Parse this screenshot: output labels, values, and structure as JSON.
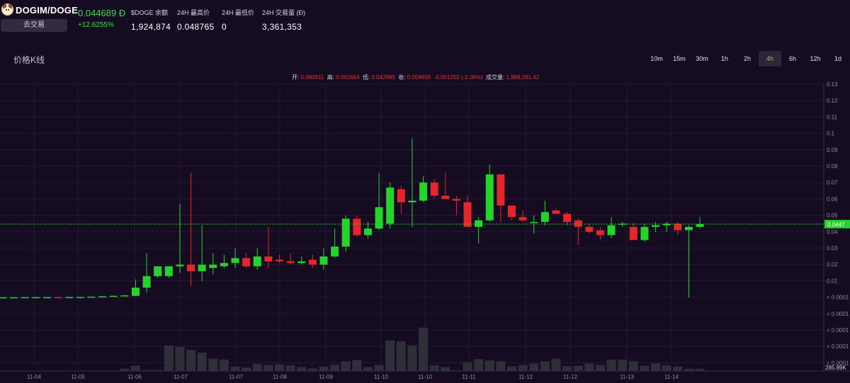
{
  "header": {
    "pair": "DOGIM/DOGE",
    "trade_button": "去交易",
    "price": "0.044689 Đ",
    "change": "+12.6255%",
    "stats": [
      {
        "label": "$DOGE 余额",
        "value": "1,924,874"
      },
      {
        "label": "24H 最高价",
        "value": "0.048765"
      },
      {
        "label": "24H 最低价",
        "value": "0"
      },
      {
        "label": "24H 交易量 (Đ)",
        "value": "3,361,353"
      }
    ]
  },
  "section_title": "价格K线",
  "intervals": [
    "10m",
    "15m",
    "30m",
    "1h",
    "2h",
    "4h",
    "6h",
    "12h",
    "1d"
  ],
  "active_interval": "4h",
  "ohlc_bar": {
    "open_label": "开:",
    "open": "0.060911",
    "high_label": "高:",
    "high": "0.062664",
    "low_label": "低:",
    "low": "0.042985",
    "close_label": "收:",
    "close": "0.059659",
    "change": "-0.001252 (-2.06%)",
    "volume_label": "成交量:",
    "volume": "1,989,281.42"
  },
  "colors": {
    "up": "#25d32d",
    "down": "#e5262b",
    "background": "#150c21",
    "grid": "#241a33",
    "volume": "#2f2f3a",
    "price_line": "#25d32d"
  },
  "chart_data": {
    "type": "candlestick",
    "y_axis": {
      "ticks": [
        "0.13",
        "0.12",
        "0.11",
        "0.1",
        "0.09",
        "0.08",
        "0.07",
        "0.06",
        "0.05",
        "0.04",
        "0.03",
        "0.02",
        "0.01",
        "< 0.0001",
        "< 0.0001",
        "< 0.0001",
        "< 0.0001",
        "< 0.0001"
      ],
      "ylim": [
        0,
        0.13
      ],
      "current_price_label": "0.0447",
      "volume_max_label": "285.89K"
    },
    "x_ticks": [
      "11-04",
      "11-05",
      "11-06",
      "11-07",
      "11-07",
      "11-08",
      "11-09",
      "11-10",
      "11-10",
      "11-11",
      "11-12",
      "11-12",
      "11-13",
      "11-14"
    ],
    "current_price": 0.0447,
    "candles": [
      {
        "o": 0.0001,
        "h": 0.0002,
        "l": 0.0,
        "c": 0.0001
      },
      {
        "o": 0.0001,
        "h": 0.0002,
        "l": 0.0,
        "c": 0.0001
      },
      {
        "o": 0.0001,
        "h": 0.0002,
        "l": 0.0,
        "c": 0.0002
      },
      {
        "o": 0.0002,
        "h": 0.0003,
        "l": 0.0001,
        "c": 0.0002
      },
      {
        "o": 0.0002,
        "h": 0.0003,
        "l": 0.0001,
        "c": 0.0002
      },
      {
        "o": 0.0002,
        "h": 0.0003,
        "l": 0.0001,
        "c": 0.0001
      },
      {
        "o": 0.0001,
        "h": 0.0003,
        "l": 0.0001,
        "c": 0.0003
      },
      {
        "o": 0.0003,
        "h": 0.0004,
        "l": 0.0002,
        "c": 0.0003
      },
      {
        "o": 0.0003,
        "h": 0.0005,
        "l": 0.0002,
        "c": 0.0005
      },
      {
        "o": 0.0005,
        "h": 0.0008,
        "l": 0.0004,
        "c": 0.0007
      },
      {
        "o": 0.0007,
        "h": 0.001,
        "l": 0.0005,
        "c": 0.001
      },
      {
        "o": 0.001,
        "h": 0.0015,
        "l": 0.0008,
        "c": 0.0013
      },
      {
        "o": 0.001,
        "h": 0.011,
        "l": 0.0008,
        "c": 0.006
      },
      {
        "o": 0.006,
        "h": 0.027,
        "l": 0.003,
        "c": 0.013
      },
      {
        "o": 0.013,
        "h": 0.018,
        "l": 0.012,
        "c": 0.019
      },
      {
        "o": 0.013,
        "h": 0.019,
        "l": 0.012,
        "c": 0.019
      },
      {
        "o": 0.019,
        "h": 0.057,
        "l": 0.015,
        "c": 0.02
      },
      {
        "o": 0.02,
        "h": 0.076,
        "l": 0.007,
        "c": 0.016
      },
      {
        "o": 0.016,
        "h": 0.044,
        "l": 0.01,
        "c": 0.02
      },
      {
        "o": 0.018,
        "h": 0.027,
        "l": 0.014,
        "c": 0.02
      },
      {
        "o": 0.019,
        "h": 0.026,
        "l": 0.018,
        "c": 0.021
      },
      {
        "o": 0.021,
        "h": 0.03,
        "l": 0.018,
        "c": 0.024
      },
      {
        "o": 0.024,
        "h": 0.027,
        "l": 0.018,
        "c": 0.019
      },
      {
        "o": 0.019,
        "h": 0.03,
        "l": 0.017,
        "c": 0.025
      },
      {
        "o": 0.025,
        "h": 0.043,
        "l": 0.018,
        "c": 0.022
      },
      {
        "o": 0.023,
        "h": 0.026,
        "l": 0.021,
        "c": 0.022
      },
      {
        "o": 0.022,
        "h": 0.027,
        "l": 0.02,
        "c": 0.021
      },
      {
        "o": 0.021,
        "h": 0.025,
        "l": 0.02,
        "c": 0.022
      },
      {
        "o": 0.023,
        "h": 0.026,
        "l": 0.018,
        "c": 0.02
      },
      {
        "o": 0.02,
        "h": 0.03,
        "l": 0.017,
        "c": 0.025
      },
      {
        "o": 0.025,
        "h": 0.042,
        "l": 0.024,
        "c": 0.031
      },
      {
        "o": 0.031,
        "h": 0.05,
        "l": 0.028,
        "c": 0.048
      },
      {
        "o": 0.048,
        "h": 0.05,
        "l": 0.037,
        "c": 0.038
      },
      {
        "o": 0.038,
        "h": 0.046,
        "l": 0.036,
        "c": 0.042
      },
      {
        "o": 0.042,
        "h": 0.076,
        "l": 0.041,
        "c": 0.055
      },
      {
        "o": 0.045,
        "h": 0.07,
        "l": 0.042,
        "c": 0.067
      },
      {
        "o": 0.066,
        "h": 0.068,
        "l": 0.051,
        "c": 0.058
      },
      {
        "o": 0.058,
        "h": 0.097,
        "l": 0.043,
        "c": 0.059
      },
      {
        "o": 0.059,
        "h": 0.074,
        "l": 0.058,
        "c": 0.07
      },
      {
        "o": 0.07,
        "h": 0.072,
        "l": 0.06,
        "c": 0.062
      },
      {
        "o": 0.062,
        "h": 0.076,
        "l": 0.06,
        "c": 0.06
      },
      {
        "o": 0.06,
        "h": 0.062,
        "l": 0.05,
        "c": 0.059
      },
      {
        "o": 0.058,
        "h": 0.062,
        "l": 0.043,
        "c": 0.043
      },
      {
        "o": 0.043,
        "h": 0.049,
        "l": 0.033,
        "c": 0.047
      },
      {
        "o": 0.047,
        "h": 0.081,
        "l": 0.046,
        "c": 0.075
      },
      {
        "o": 0.075,
        "h": 0.075,
        "l": 0.046,
        "c": 0.056
      },
      {
        "o": 0.056,
        "h": 0.056,
        "l": 0.047,
        "c": 0.049
      },
      {
        "o": 0.049,
        "h": 0.053,
        "l": 0.046,
        "c": 0.047
      },
      {
        "o": 0.046,
        "h": 0.05,
        "l": 0.039,
        "c": 0.046
      },
      {
        "o": 0.046,
        "h": 0.059,
        "l": 0.044,
        "c": 0.052
      },
      {
        "o": 0.053,
        "h": 0.054,
        "l": 0.051,
        "c": 0.051
      },
      {
        "o": 0.051,
        "h": 0.052,
        "l": 0.044,
        "c": 0.046
      },
      {
        "o": 0.047,
        "h": 0.048,
        "l": 0.032,
        "c": 0.043
      },
      {
        "o": 0.043,
        "h": 0.045,
        "l": 0.039,
        "c": 0.04
      },
      {
        "o": 0.041,
        "h": 0.043,
        "l": 0.035,
        "c": 0.038
      },
      {
        "o": 0.038,
        "h": 0.049,
        "l": 0.036,
        "c": 0.044
      },
      {
        "o": 0.045,
        "h": 0.046,
        "l": 0.043,
        "c": 0.045
      },
      {
        "o": 0.043,
        "h": 0.045,
        "l": 0.035,
        "c": 0.035
      },
      {
        "o": 0.035,
        "h": 0.045,
        "l": 0.034,
        "c": 0.043
      },
      {
        "o": 0.043,
        "h": 0.046,
        "l": 0.04,
        "c": 0.044
      },
      {
        "o": 0.044,
        "h": 0.046,
        "l": 0.04,
        "c": 0.045
      },
      {
        "o": 0.045,
        "h": 0.046,
        "l": 0.038,
        "c": 0.041
      },
      {
        "o": 0.041,
        "h": 0.044,
        "l": 0.0,
        "c": 0.043
      },
      {
        "o": 0.043,
        "h": 0.049,
        "l": 0.042,
        "c": 0.0447
      }
    ],
    "volumes": [
      0,
      0,
      0,
      0,
      0,
      0,
      0,
      0,
      0,
      0,
      0,
      0.05,
      0.12,
      0.02,
      0.02,
      0.58,
      0.55,
      0.48,
      0.42,
      0.28,
      0.26,
      0.1,
      0.08,
      0.16,
      0.14,
      0.15,
      0.13,
      0.09,
      0.06,
      0.1,
      0.14,
      0.22,
      0.25,
      0.09,
      0.14,
      0.7,
      0.68,
      0.58,
      0.99,
      0.13,
      0.09,
      0.02,
      0.2,
      0.27,
      0.24,
      0.22,
      0.11,
      0.14,
      0.17,
      0.22,
      0.28,
      0.11,
      0.12,
      0.17,
      0.14,
      0.26,
      0.26,
      0.22,
      0.12,
      0.17,
      0.13,
      0.1,
      0.05,
      0.05
    ]
  }
}
